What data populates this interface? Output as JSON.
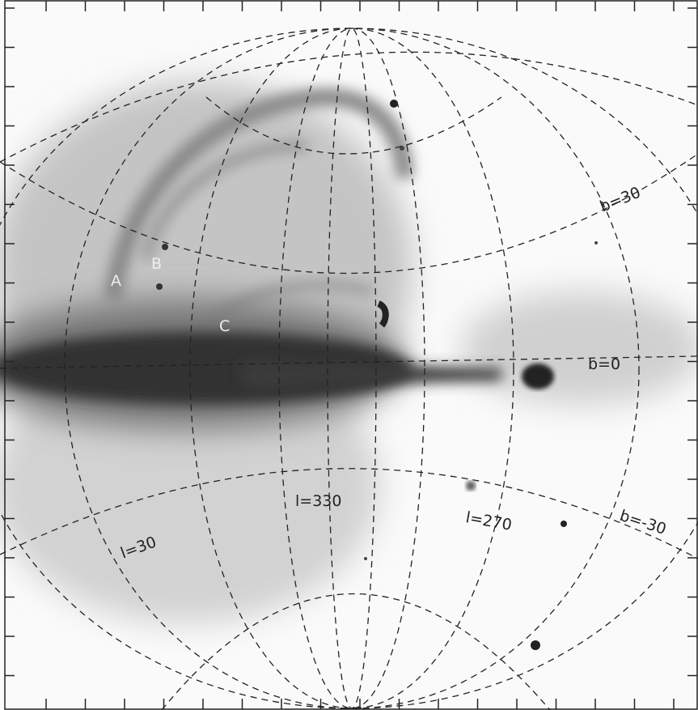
{
  "labels": {
    "loop_a": "A",
    "loop_b": "B",
    "loop_c": "C",
    "lat_plus30": "b=30",
    "lat_0": "b=0",
    "lat_minus30": "b=-30",
    "lon_30": "l=30",
    "lon_330": "l=330",
    "lon_270": "l=270"
  }
}
